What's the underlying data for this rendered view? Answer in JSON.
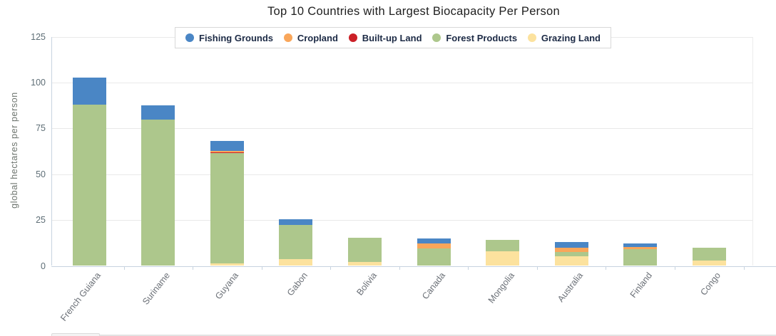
{
  "chart_data": {
    "type": "bar",
    "variant": "stacked",
    "title": "Top 10 Countries with Largest Biocapacity Per Person",
    "xlabel": "",
    "ylabel": "global hectares per person",
    "ylim": [
      0,
      125
    ],
    "y_ticks": [
      0,
      25,
      50,
      75,
      100,
      125
    ],
    "grid": "horizontal",
    "legend_position": "top-center",
    "colors": {
      "fishing_grounds": "#4A86C5",
      "cropland": "#F9A65A",
      "built_up_land": "#CB2027",
      "forest_products": "#ADC78C",
      "grazing_land": "#FCE29E"
    },
    "legend": [
      {
        "key": "fishing_grounds",
        "label": "Fishing Grounds"
      },
      {
        "key": "cropland",
        "label": "Cropland"
      },
      {
        "key": "built_up_land",
        "label": "Built-up Land"
      },
      {
        "key": "forest_products",
        "label": "Forest Products"
      },
      {
        "key": "grazing_land",
        "label": "Grazing Land"
      }
    ],
    "categories": [
      "French Guiana",
      "Suriname",
      "Guyana",
      "Gabon",
      "Bolivia",
      "Canada",
      "Mongolia",
      "Australia",
      "Finland",
      "Congo"
    ],
    "stack_order_bottom_to_top": [
      "grazing_land",
      "forest_products",
      "built_up_land",
      "cropland",
      "fishing_grounds"
    ],
    "series": [
      {
        "key": "grazing_land",
        "name": "Grazing Land",
        "values": [
          0,
          0,
          1.5,
          3.6,
          2.3,
          0,
          8.0,
          5.2,
          0,
          3.1
        ]
      },
      {
        "key": "forest_products",
        "name": "Forest Products",
        "values": [
          87.8,
          79.9,
          60.2,
          18.7,
          13.2,
          9.4,
          6.3,
          2.4,
          9.1,
          6.7
        ]
      },
      {
        "key": "built_up_land",
        "name": "Built-up Land",
        "values": [
          0,
          0,
          0.4,
          0,
          0,
          0,
          0,
          0,
          0,
          0
        ]
      },
      {
        "key": "cropland",
        "name": "Cropland",
        "values": [
          0,
          0,
          0.6,
          0,
          0,
          2.7,
          0,
          2.2,
          1.1,
          0
        ]
      },
      {
        "key": "fishing_grounds",
        "name": "Fishing Grounds",
        "values": [
          14.9,
          7.8,
          5.3,
          3.0,
          0,
          2.9,
          0,
          3.2,
          2.1,
          0
        ]
      }
    ],
    "totals": [
      102.7,
      87.7,
      68.0,
      25.3,
      15.5,
      15.0,
      14.3,
      13.0,
      12.3,
      9.8
    ]
  }
}
